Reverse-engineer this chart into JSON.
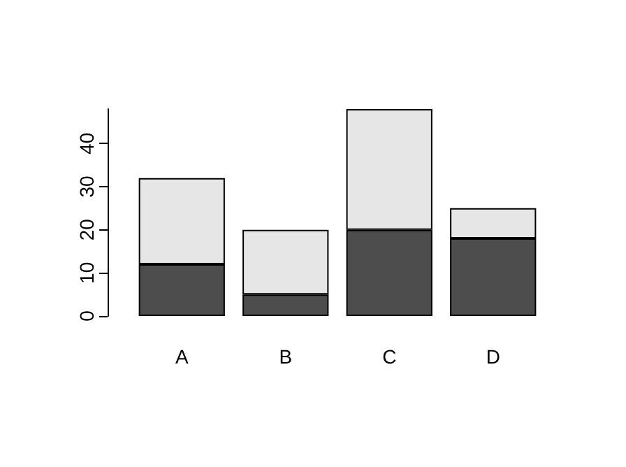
{
  "chart_data": {
    "type": "bar",
    "stacked": true,
    "categories": [
      "A",
      "B",
      "C",
      "D"
    ],
    "series": [
      {
        "color": "#4d4d4d",
        "values": [
          12,
          5,
          20,
          18
        ]
      },
      {
        "color": "#e6e6e6",
        "values": [
          20,
          15,
          28,
          7
        ]
      }
    ],
    "ylim": [
      0,
      48
    ],
    "yticks": [
      0,
      10,
      20,
      30,
      40
    ]
  }
}
